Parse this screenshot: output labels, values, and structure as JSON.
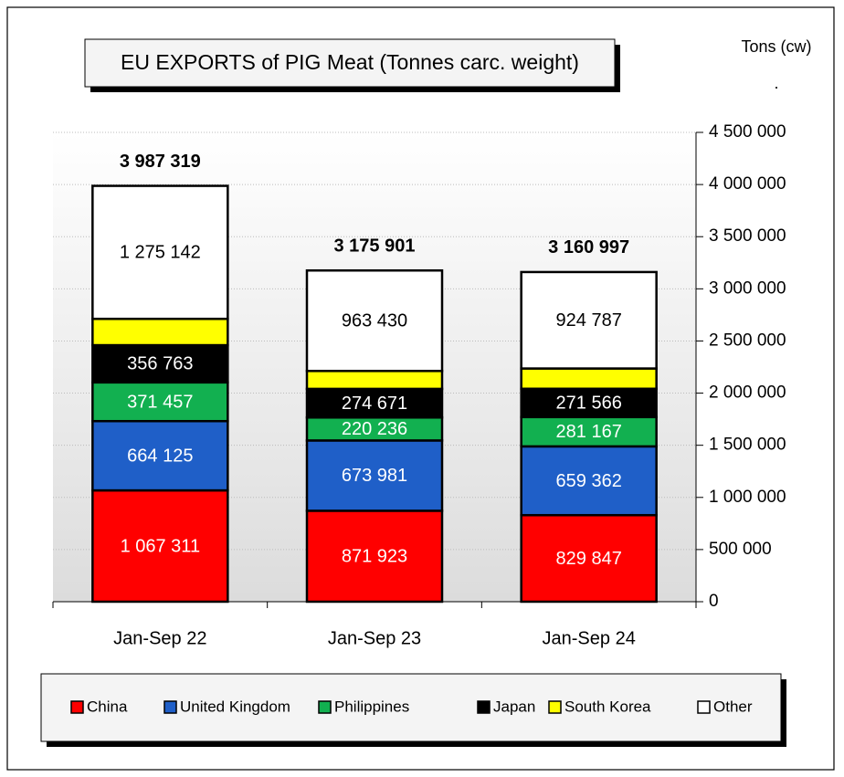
{
  "chart_data": {
    "type": "stacked_bar",
    "title": "EU EXPORTS of PIG Meat (Tonnes carc. weight)",
    "y_axis_label": "Tons (cw)",
    "y_axis_note": ".",
    "categories": [
      "Jan-Sep 22",
      "Jan-Sep 23",
      "Jan-Sep 24"
    ],
    "series": [
      {
        "name": "China",
        "color": "#ff0000",
        "values": [
          1067311,
          871923,
          829847
        ],
        "value_labels": [
          "1 067 311",
          "871 923",
          "829 847"
        ]
      },
      {
        "name": "United Kingdom",
        "color": "#1f5fc8",
        "values": [
          664125,
          673981,
          659362
        ],
        "value_labels": [
          "664 125",
          "673 981",
          "659 362"
        ]
      },
      {
        "name": "Philippines",
        "color": "#12b050",
        "values": [
          371457,
          220236,
          281167
        ],
        "value_labels": [
          "371 457",
          "220 236",
          "281 167"
        ]
      },
      {
        "name": "Japan",
        "color": "#000000",
        "values": [
          356763,
          274671,
          271566
        ],
        "value_labels": [
          "356 763",
          "274 671",
          "271 566"
        ]
      },
      {
        "name": "South Korea",
        "color": "#ffff00",
        "values": [
          252521,
          171660,
          194268
        ]
      },
      {
        "name": "Other",
        "color": "#ffffff",
        "values": [
          1275142,
          963430,
          924787
        ],
        "value_labels": [
          "1 275 142",
          "963 430",
          "924 787"
        ]
      }
    ],
    "totals": {
      "values": [
        3987319,
        3175901,
        3160997
      ],
      "value_labels": [
        "3 987 319",
        "3 175 901",
        "3 160 997"
      ]
    },
    "ylim": [
      0,
      4500000
    ],
    "yticks": [
      0,
      {
        "value": 500000,
        "label": "500 000"
      },
      {
        "value": 1000000,
        "label": "1 000 000"
      },
      {
        "value": 1500000,
        "label": "1 500 000"
      },
      {
        "value": 2000000,
        "label": "2 000 000"
      },
      {
        "value": 2500000,
        "label": "2 500 000"
      },
      {
        "value": 3000000,
        "label": "3 000 000"
      },
      {
        "value": 3500000,
        "label": "3 500 000"
      },
      {
        "value": 4000000,
        "label": "4 000 000"
      },
      {
        "value": 4500000,
        "label": "4 500 000"
      }
    ],
    "grid": true,
    "legend": "bottom"
  }
}
